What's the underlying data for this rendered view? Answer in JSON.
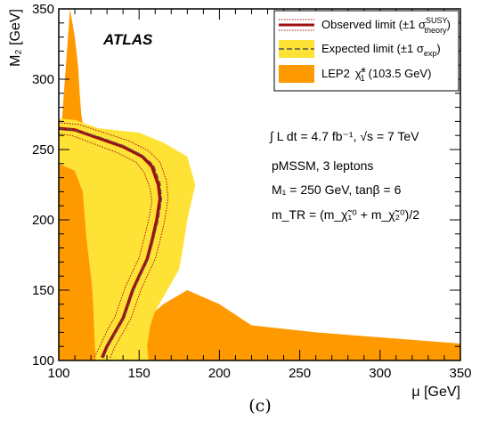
{
  "chart_data": {
    "type": "area",
    "xlabel": "μ [GeV]",
    "ylabel": "M₂ [GeV]",
    "xlim": [
      100,
      350
    ],
    "ylim": [
      100,
      350
    ],
    "xticks": [
      100,
      150,
      200,
      250,
      300,
      350
    ],
    "yticks": [
      100,
      150,
      200,
      250,
      300,
      350
    ],
    "experiment_label": "ATLAS",
    "caption": "(c)",
    "legend": {
      "placement": "top-right",
      "entries": [
        {
          "key": "observed",
          "label": "Observed limit (±1 σ",
          "label_sup": "SUSY",
          "label_sub": "theory",
          "label_end": ")"
        },
        {
          "key": "expected",
          "label": "Expected limit (±1 σ",
          "label_sub": "exp",
          "label_end": ")"
        },
        {
          "key": "lep",
          "label": "LEP2",
          "symbol": "χ̃",
          "symbol_sup": "±",
          "symbol_sub": "1",
          "label_tail": "(103.5 GeV)"
        }
      ]
    },
    "annotations": {
      "lumi": "∫ L dt = 4.7 fb⁻¹, √s = 7 TeV",
      "model": "pMSSM, 3 leptons",
      "params": "M₁ = 250 GeV, tanβ = 6",
      "mtr": "m_TR = (m_χ̃₁⁰ + m_χ̃₂⁰)/2"
    },
    "colors": {
      "lep": "#ff9900",
      "expected_band": "#ffe236",
      "observed": "#a01010",
      "expected_line": "#555555"
    },
    "series": [
      {
        "key": "lep_left",
        "points": [
          [
            107,
            350
          ],
          [
            110,
            330
          ],
          [
            112,
            310
          ],
          [
            113,
            290
          ],
          [
            114,
            275
          ],
          [
            115,
            268
          ],
          [
            112,
            265
          ],
          [
            107,
            262
          ],
          [
            102,
            259
          ],
          [
            100,
            258
          ],
          [
            100,
            100
          ],
          [
            123,
            100
          ],
          [
            121,
            150
          ],
          [
            117,
            190
          ],
          [
            115,
            220
          ],
          [
            110,
            235
          ],
          [
            100,
            240
          ]
        ]
      },
      {
        "key": "lep_bottom",
        "points": [
          [
            180,
            150
          ],
          [
            200,
            140
          ],
          [
            220,
            125
          ],
          [
            260,
            120
          ],
          [
            350,
            112
          ],
          [
            350,
            100
          ],
          [
            138,
            100
          ],
          [
            150,
            125
          ],
          [
            165,
            140
          ]
        ]
      },
      {
        "key": "expected_band",
        "points": [
          [
            100,
            272
          ],
          [
            110,
            271
          ],
          [
            125,
            265
          ],
          [
            150,
            262
          ],
          [
            165,
            255
          ],
          [
            180,
            245
          ],
          [
            185,
            225
          ],
          [
            180,
            200
          ],
          [
            178,
            185
          ],
          [
            175,
            165
          ],
          [
            170,
            155
          ],
          [
            165,
            145
          ],
          [
            160,
            135
          ],
          [
            157,
            125
          ],
          [
            155,
            110
          ],
          [
            156,
            100
          ],
          [
            123,
            100
          ],
          [
            121,
            150
          ],
          [
            117,
            190
          ],
          [
            115,
            220
          ],
          [
            110,
            235
          ],
          [
            100,
            240
          ]
        ]
      },
      {
        "key": "observed",
        "points": [
          [
            100,
            265
          ],
          [
            110,
            264
          ],
          [
            125,
            258
          ],
          [
            140,
            252
          ],
          [
            152,
            245
          ],
          [
            158,
            238
          ],
          [
            162,
            225
          ],
          [
            163,
            215
          ],
          [
            161,
            200
          ],
          [
            158,
            185
          ],
          [
            155,
            172
          ],
          [
            150,
            160
          ],
          [
            146,
            150
          ],
          [
            143,
            140
          ],
          [
            140,
            130
          ],
          [
            135,
            120
          ],
          [
            130,
            110
          ],
          [
            127,
            102
          ]
        ]
      },
      {
        "key": "observed_plus",
        "points": [
          [
            100,
            269
          ],
          [
            112,
            268
          ],
          [
            128,
            262
          ],
          [
            144,
            256
          ],
          [
            156,
            249
          ],
          [
            163,
            241
          ],
          [
            167,
            228
          ],
          [
            168,
            215
          ],
          [
            166,
            200
          ],
          [
            163,
            185
          ],
          [
            160,
            172
          ],
          [
            155,
            160
          ],
          [
            151,
            150
          ],
          [
            148,
            140
          ],
          [
            145,
            130
          ],
          [
            140,
            120
          ],
          [
            135,
            110
          ],
          [
            132,
            102
          ]
        ]
      },
      {
        "key": "observed_minus",
        "points": [
          [
            100,
            261
          ],
          [
            108,
            260
          ],
          [
            122,
            254
          ],
          [
            136,
            248
          ],
          [
            148,
            241
          ],
          [
            153,
            234
          ],
          [
            157,
            222
          ],
          [
            158,
            213
          ],
          [
            156,
            200
          ],
          [
            153,
            186
          ],
          [
            150,
            173
          ],
          [
            145,
            161
          ],
          [
            141,
            151
          ],
          [
            138,
            141
          ],
          [
            135,
            131
          ],
          [
            130,
            121
          ],
          [
            126,
            111
          ],
          [
            122,
            102
          ]
        ]
      },
      {
        "key": "expected",
        "points": [
          [
            100,
            265
          ],
          [
            110,
            264
          ],
          [
            125,
            259
          ],
          [
            140,
            253
          ],
          [
            152,
            246
          ],
          [
            159,
            239
          ],
          [
            163,
            226
          ],
          [
            164,
            215
          ],
          [
            162,
            200
          ],
          [
            159,
            186
          ],
          [
            156,
            173
          ],
          [
            151,
            161
          ],
          [
            147,
            151
          ],
          [
            144,
            141
          ],
          [
            141,
            131
          ],
          [
            136,
            121
          ],
          [
            131,
            111
          ],
          [
            128,
            102
          ]
        ]
      }
    ]
  }
}
